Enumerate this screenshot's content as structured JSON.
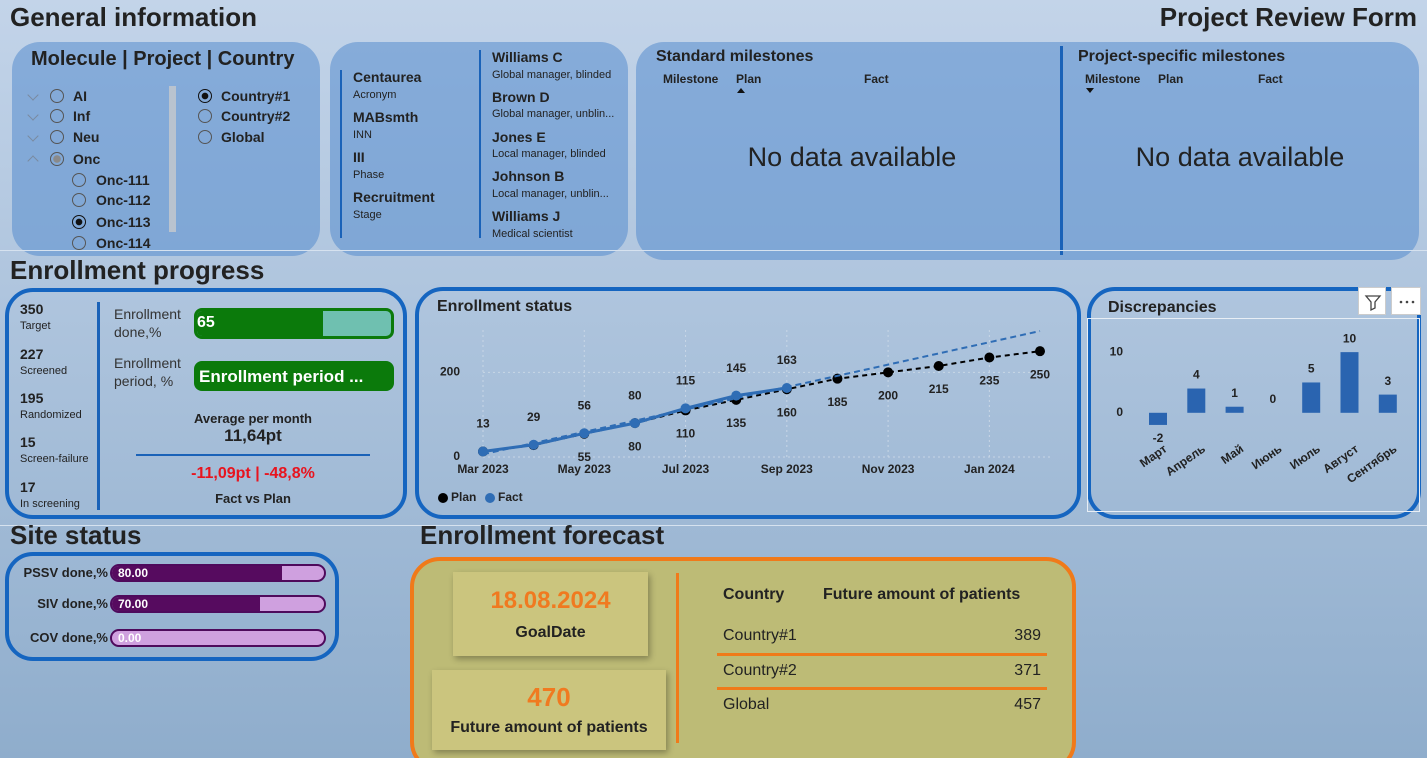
{
  "header": {
    "title": "General information",
    "form_title": "Project Review Form"
  },
  "slicer": {
    "title": "Molecule | Project | Country",
    "molecules": [
      {
        "label": "AI"
      },
      {
        "label": "Inf"
      },
      {
        "label": "Neu"
      },
      {
        "label": "Onc",
        "expanded": true,
        "partial": true
      }
    ],
    "projects": [
      {
        "label": "Onc-111"
      },
      {
        "label": "Onc-112"
      },
      {
        "label": "Onc-113",
        "selected": true
      },
      {
        "label": "Onc-114"
      }
    ],
    "countries": [
      {
        "label": "Country#1",
        "selected": true
      },
      {
        "label": "Country#2"
      },
      {
        "label": "Global"
      }
    ]
  },
  "project_info": [
    {
      "value": "Centaurea",
      "label": "Acronym"
    },
    {
      "value": "MABsmth",
      "label": "INN"
    },
    {
      "value": "III",
      "label": "Phase"
    },
    {
      "value": "Recruitment",
      "label": "Stage"
    }
  ],
  "team": [
    {
      "name": "Williams C",
      "role": "Global manager, blinded"
    },
    {
      "name": "Brown D",
      "role": "Global manager, unblin..."
    },
    {
      "name": "Jones E",
      "role": "Local manager, blinded"
    },
    {
      "name": "Johnson B",
      "role": "Local manager, unblin..."
    },
    {
      "name": "Williams J",
      "role": "Medical scientist"
    }
  ],
  "milestones": [
    {
      "title": "Standard milestones",
      "columns": [
        "Milestone",
        "Plan",
        "Fact"
      ],
      "sorted_column": 1,
      "message": "No data available"
    },
    {
      "title": "Project-specific milestones",
      "columns": [
        "Milestone",
        "Plan",
        "Fact"
      ],
      "sorted_column": 0,
      "message": "No data available"
    }
  ],
  "enrollment": {
    "title": "Enrollment progress",
    "stats": [
      {
        "value": 350,
        "label": "Target"
      },
      {
        "value": 227,
        "label": "Screened"
      },
      {
        "value": 195,
        "label": "Randomized"
      },
      {
        "value": 15,
        "label": "Screen-failure"
      },
      {
        "value": 17,
        "label": "In screening"
      }
    ],
    "range": [
      0,
      100
    ],
    "done": {
      "label": "Enrollment done,%",
      "value": 65
    },
    "period": {
      "label": "Enrollment period, %",
      "value_label": "Enrollment period ..."
    },
    "average": {
      "label": "Average per month",
      "value": "11,64pt"
    },
    "deviation": {
      "value": "-11,09pt | -48,8%",
      "label": "Fact vs Plan"
    }
  },
  "chart_data": [
    {
      "type": "line",
      "title": "Enrollment status",
      "categories": [
        "Mar 2023",
        null,
        "May 2023",
        null,
        "Jul 2023",
        null,
        "Sep 2023",
        null,
        "Nov 2023",
        null,
        "Jan 2024",
        null
      ],
      "series": [
        {
          "name": "Plan",
          "color": "#000000",
          "dashed": true,
          "values": [
            13,
            28,
            55,
            80,
            110,
            135,
            160,
            185,
            200,
            215,
            235,
            250
          ],
          "value_labels": [
            null,
            null,
            "55",
            "80",
            "110",
            "135",
            "160",
            "185",
            "200",
            "215",
            "235",
            "250"
          ]
        },
        {
          "name": "Fact",
          "color": "#2f6db5",
          "trend": true,
          "values": [
            13,
            29,
            56,
            80,
            115,
            145,
            163,
            null,
            null,
            null,
            null,
            null
          ]
        }
      ],
      "ylim": [
        0,
        300
      ],
      "yticks": [
        0,
        200
      ],
      "grid": true,
      "legend": "bottom-left"
    },
    {
      "type": "bar",
      "title": "Discrepancies",
      "categories": [
        "Март",
        "Апрель",
        "Май",
        "Июнь",
        "Июль",
        "Август",
        "Сентябрь"
      ],
      "values": [
        -2,
        4,
        1,
        0,
        5,
        10,
        3
      ],
      "color": "#2a64b0",
      "ylim": [
        -3,
        12
      ],
      "yticks": [
        0,
        10
      ]
    }
  ],
  "site_status": {
    "title": "Site status",
    "range": [
      0,
      100
    ],
    "items": [
      {
        "label": "PSSV done,%",
        "value": 80,
        "value_label": "80.00"
      },
      {
        "label": "SIV done,%",
        "value": 70,
        "value_label": "70.00"
      },
      {
        "label": "COV done,%",
        "value": 0,
        "value_label": "0.00"
      }
    ]
  },
  "forecast": {
    "title": "Enrollment forecast",
    "goal_date": {
      "value": "18.08.2024",
      "label": "GoalDate"
    },
    "future": {
      "value": 470,
      "label": "Future amount of patients"
    },
    "table": {
      "columns": [
        "Country",
        "Future amount of patients"
      ],
      "rows": [
        [
          "Country#1",
          389
        ],
        [
          "Country#2",
          371
        ],
        [
          "Global",
          457
        ]
      ]
    }
  }
}
